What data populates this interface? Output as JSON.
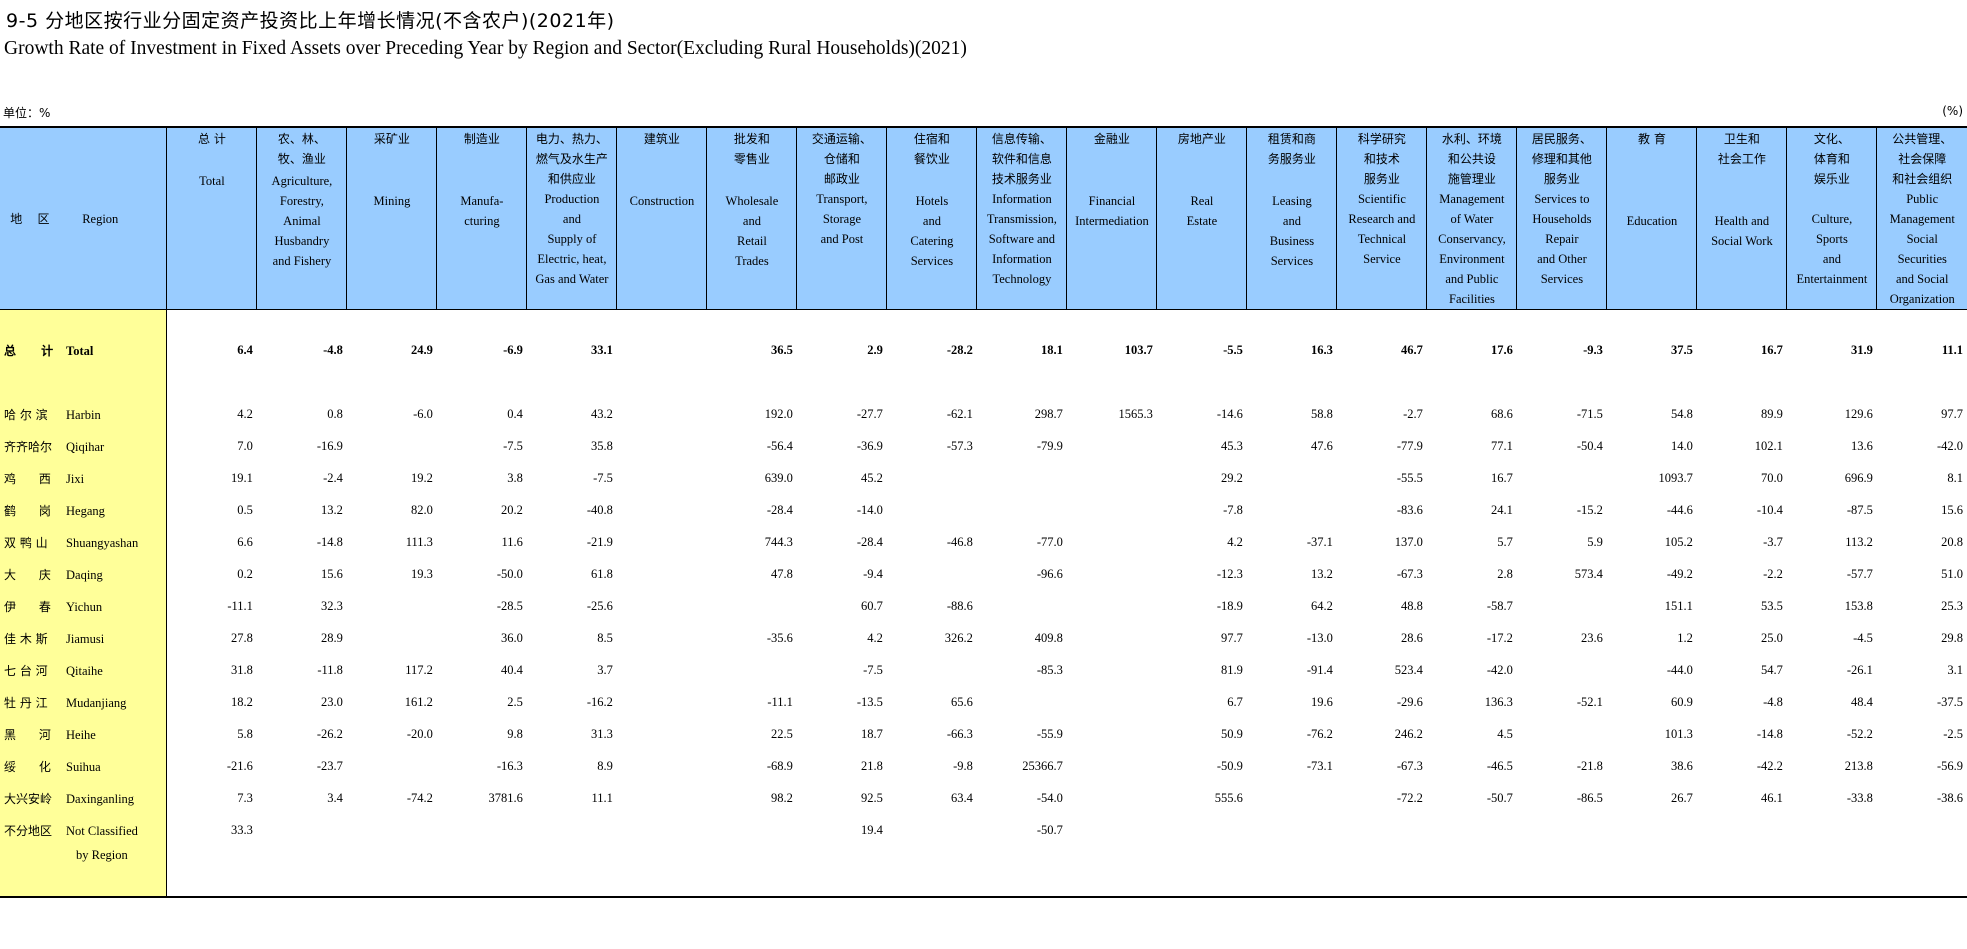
{
  "title_cn": "9-5   分地区按行业分固定资产投资比上年增长情况(不含农户)(2021年)",
  "title_en": "Growth Rate of Investment in Fixed Assets over Preceding Year by Region and Sector(Excluding Rural Households)(2021)",
  "unit_left": "单位：%",
  "unit_right": "(%)",
  "region_header": {
    "cn": "地    区",
    "en": "Region"
  },
  "columns": [
    {
      "cn": "总 计",
      "en": "Total"
    },
    {
      "cn": "农、林、\n牧、渔业",
      "en": "Agriculture,\nForestry,\nAnimal\nHusbandry\nand Fishery"
    },
    {
      "cn": "采矿业",
      "en": "\nMining"
    },
    {
      "cn": "制造业",
      "en": "\nManufa-\ncturing"
    },
    {
      "cn": "电力、热力、\n燃气及水生产\n和供应业",
      "en": "Production\nand\nSupply of\nElectric, heat,\nGas and Water"
    },
    {
      "cn": "建筑业",
      "en": "\nConstruction"
    },
    {
      "cn": "批发和\n零售业",
      "en": "\nWholesale\nand\nRetail\nTrades"
    },
    {
      "cn": "交通运输、\n仓储和\n邮政业",
      "en": "Transport,\nStorage\nand Post"
    },
    {
      "cn": "住宿和\n餐饮业",
      "en": "\nHotels\nand\nCatering\nServices"
    },
    {
      "cn": "信息传输、\n软件和信息\n技术服务业",
      "en": "Information\nTransmission,\nSoftware and\nInformation\nTechnology"
    },
    {
      "cn": "金融业",
      "en": "\nFinancial\nIntermediation"
    },
    {
      "cn": "房地产业",
      "en": "\nReal\nEstate"
    },
    {
      "cn": "租赁和商\n务服务业",
      "en": "\nLeasing\nand\nBusiness\nServices"
    },
    {
      "cn": "科学研究\n和技术\n服务业",
      "en": "Scientific\nResearch and\nTechnical\nService"
    },
    {
      "cn": "水利、环境\n和公共设\n施管理业",
      "en": "Management\nof Water\nConservancy,\nEnvironment\nand Public\nFacilities"
    },
    {
      "cn": "居民服务、\n修理和其他\n服务业",
      "en": "Services to\nHouseholds\nRepair\nand Other\nServices"
    },
    {
      "cn": "教 育",
      "en": "\n\nEducation"
    },
    {
      "cn": "卫生和\n社会工作",
      "en": "\n\nHealth and\nSocial Work"
    },
    {
      "cn": "文化、\n体育和\n娱乐业",
      "en": "\nCulture,\nSports\nand\nEntertainment"
    },
    {
      "cn": "公共管理、\n社会保障\n和社会组织",
      "en": "Public\nManagement\nSocial\nSecurities\nand Social\nOrganization"
    }
  ],
  "rows": [
    {
      "cn": "总      计",
      "en": "Total",
      "values": [
        "6.4",
        "-4.8",
        "24.9",
        "-6.9",
        "33.1",
        "",
        "36.5",
        "2.9",
        "-28.2",
        "18.1",
        "103.7",
        "-5.5",
        "16.3",
        "46.7",
        "17.6",
        "-9.3",
        "37.5",
        "16.7",
        "31.9",
        "11.1"
      ]
    },
    {
      "cn": "哈 尔 滨",
      "en": "Harbin",
      "values": [
        "4.2",
        "0.8",
        "-6.0",
        "0.4",
        "43.2",
        "",
        "192.0",
        "-27.7",
        "-62.1",
        "298.7",
        "1565.3",
        "-14.6",
        "58.8",
        "-2.7",
        "68.6",
        "-71.5",
        "54.8",
        "89.9",
        "129.6",
        "97.7"
      ]
    },
    {
      "cn": "齐齐哈尔",
      "en": "Qiqihar",
      "values": [
        "7.0",
        "-16.9",
        "",
        "-7.5",
        "35.8",
        "",
        "-56.4",
        "-36.9",
        "-57.3",
        "-79.9",
        "",
        "45.3",
        "47.6",
        "-77.9",
        "77.1",
        "-50.4",
        "14.0",
        "102.1",
        "13.6",
        "-42.0"
      ]
    },
    {
      "cn": "鸡      西",
      "en": "Jixi",
      "values": [
        "19.1",
        "-2.4",
        "19.2",
        "3.8",
        "-7.5",
        "",
        "639.0",
        "45.2",
        "",
        "",
        "",
        "29.2",
        "",
        "-55.5",
        "16.7",
        "",
        "1093.7",
        "70.0",
        "696.9",
        "8.1"
      ]
    },
    {
      "cn": "鹤      岗",
      "en": "Hegang",
      "values": [
        "0.5",
        "13.2",
        "82.0",
        "20.2",
        "-40.8",
        "",
        "-28.4",
        "-14.0",
        "",
        "",
        "",
        "-7.8",
        "",
        "-83.6",
        "24.1",
        "-15.2",
        "-44.6",
        "-10.4",
        "-87.5",
        "15.6"
      ]
    },
    {
      "cn": "双 鸭 山",
      "en": "Shuangyashan",
      "values": [
        "6.6",
        "-14.8",
        "111.3",
        "11.6",
        "-21.9",
        "",
        "744.3",
        "-28.4",
        "-46.8",
        "-77.0",
        "",
        "4.2",
        "-37.1",
        "137.0",
        "5.7",
        "5.9",
        "105.2",
        "-3.7",
        "113.2",
        "20.8"
      ]
    },
    {
      "cn": "大      庆",
      "en": "Daqing",
      "values": [
        "0.2",
        "15.6",
        "19.3",
        "-50.0",
        "61.8",
        "",
        "47.8",
        "-9.4",
        "",
        "-96.6",
        "",
        "-12.3",
        "13.2",
        "-67.3",
        "2.8",
        "573.4",
        "-49.2",
        "-2.2",
        "-57.7",
        "51.0"
      ]
    },
    {
      "cn": "伊      春",
      "en": "Yichun",
      "values": [
        "-11.1",
        "32.3",
        "",
        "-28.5",
        "-25.6",
        "",
        "",
        "60.7",
        "-88.6",
        "",
        "",
        "-18.9",
        "64.2",
        "48.8",
        "-58.7",
        "",
        "151.1",
        "53.5",
        "153.8",
        "25.3"
      ]
    },
    {
      "cn": "佳 木 斯",
      "en": "Jiamusi",
      "values": [
        "27.8",
        "28.9",
        "",
        "36.0",
        "8.5",
        "",
        "-35.6",
        "4.2",
        "326.2",
        "409.8",
        "",
        "97.7",
        "-13.0",
        "28.6",
        "-17.2",
        "23.6",
        "1.2",
        "25.0",
        "-4.5",
        "29.8"
      ]
    },
    {
      "cn": "七 台 河",
      "en": "Qitaihe",
      "values": [
        "31.8",
        "-11.8",
        "117.2",
        "40.4",
        "3.7",
        "",
        "",
        "-7.5",
        "",
        "-85.3",
        "",
        "81.9",
        "-91.4",
        "523.4",
        "-42.0",
        "",
        "-44.0",
        "54.7",
        "-26.1",
        "3.1"
      ]
    },
    {
      "cn": "牡 丹 江",
      "en": "Mudanjiang",
      "values": [
        "18.2",
        "23.0",
        "161.2",
        "2.5",
        "-16.2",
        "",
        "-11.1",
        "-13.5",
        "65.6",
        "",
        "",
        "6.7",
        "19.6",
        "-29.6",
        "136.3",
        "-52.1",
        "60.9",
        "-4.8",
        "48.4",
        "-37.5"
      ]
    },
    {
      "cn": "黑      河",
      "en": "Heihe",
      "values": [
        "5.8",
        "-26.2",
        "-20.0",
        "9.8",
        "31.3",
        "",
        "22.5",
        "18.7",
        "-66.3",
        "-55.9",
        "",
        "50.9",
        "-76.2",
        "246.2",
        "4.5",
        "",
        "101.3",
        "-14.8",
        "-52.2",
        "-2.5"
      ]
    },
    {
      "cn": "绥      化",
      "en": "Suihua",
      "values": [
        "-21.6",
        "-23.7",
        "",
        "-16.3",
        "8.9",
        "",
        "-68.9",
        "21.8",
        "-9.8",
        "25366.7",
        "",
        "-50.9",
        "-73.1",
        "-67.3",
        "-46.5",
        "-21.8",
        "38.6",
        "-42.2",
        "213.8",
        "-56.9"
      ]
    },
    {
      "cn": "大兴安岭",
      "en": "Daxinganling",
      "values": [
        "7.3",
        "3.4",
        "-74.2",
        "3781.6",
        "11.1",
        "",
        "98.2",
        "92.5",
        "63.4",
        "-54.0",
        "",
        "555.6",
        "",
        "-72.2",
        "-50.7",
        "-86.5",
        "26.7",
        "46.1",
        "-33.8",
        "-38.6"
      ]
    },
    {
      "cn": "不分地区",
      "en": "Not Classified",
      "values": [
        "33.3",
        "",
        "",
        "",
        "",
        "",
        "",
        "19.4",
        "",
        "-50.7",
        "",
        "",
        "",
        "",
        "",
        "",
        "",
        "",
        "",
        ""
      ]
    }
  ],
  "last_row_en2": "by Region"
}
